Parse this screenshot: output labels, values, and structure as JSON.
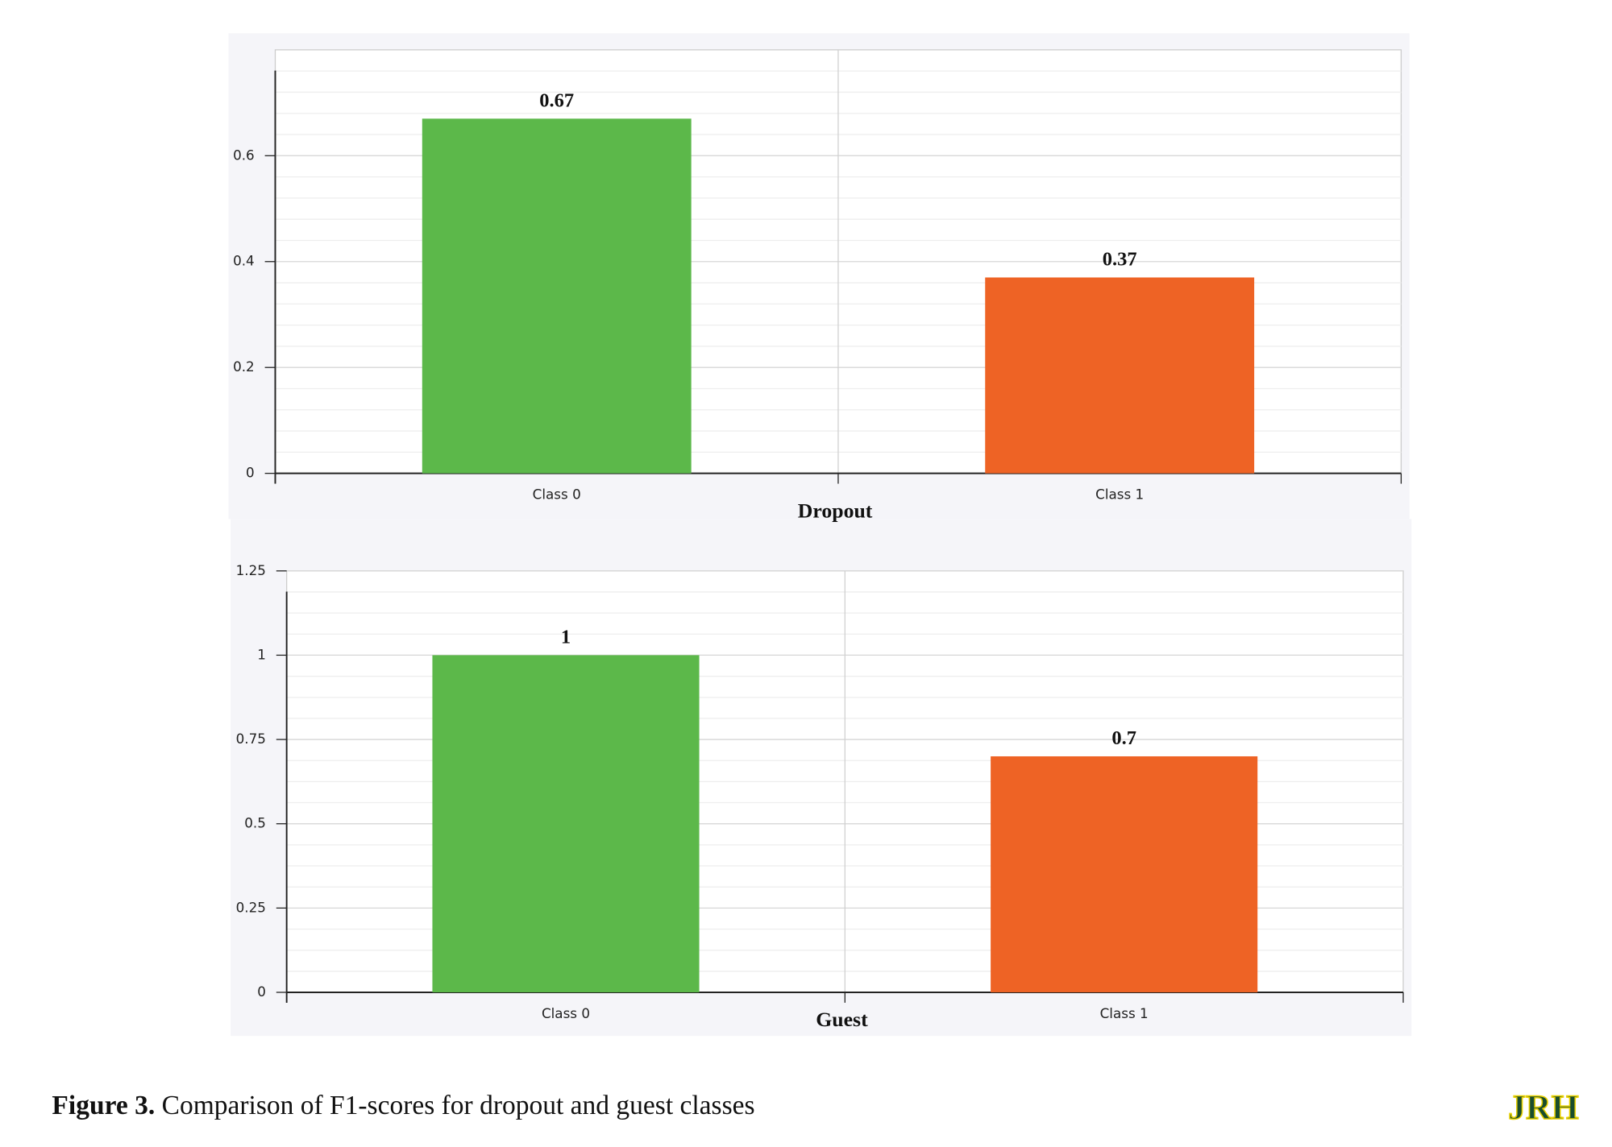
{
  "chart_data": [
    {
      "type": "bar",
      "title": "Dropout",
      "categories": [
        "Class 0",
        "Class 1"
      ],
      "values": [
        0.67,
        0.37
      ],
      "colors": [
        "#5cb84a",
        "#ee6325"
      ],
      "ylim": [
        0,
        0.8
      ],
      "yticks": [
        0,
        0.2,
        0.4,
        0.6
      ],
      "grid": true
    },
    {
      "type": "bar",
      "title": "Guest",
      "categories": [
        "Class 0",
        "Class 1"
      ],
      "values": [
        1,
        0.7
      ],
      "colors": [
        "#5cb84a",
        "#ee6325"
      ],
      "ylim": [
        0,
        1.25
      ],
      "yticks": [
        0,
        0.25,
        0.5,
        0.75,
        1,
        1.25
      ],
      "grid": true
    }
  ],
  "caption": {
    "label": "Figure 3.",
    "text": "Comparison of F1-scores for dropout and guest classes"
  },
  "logo": "JRH"
}
